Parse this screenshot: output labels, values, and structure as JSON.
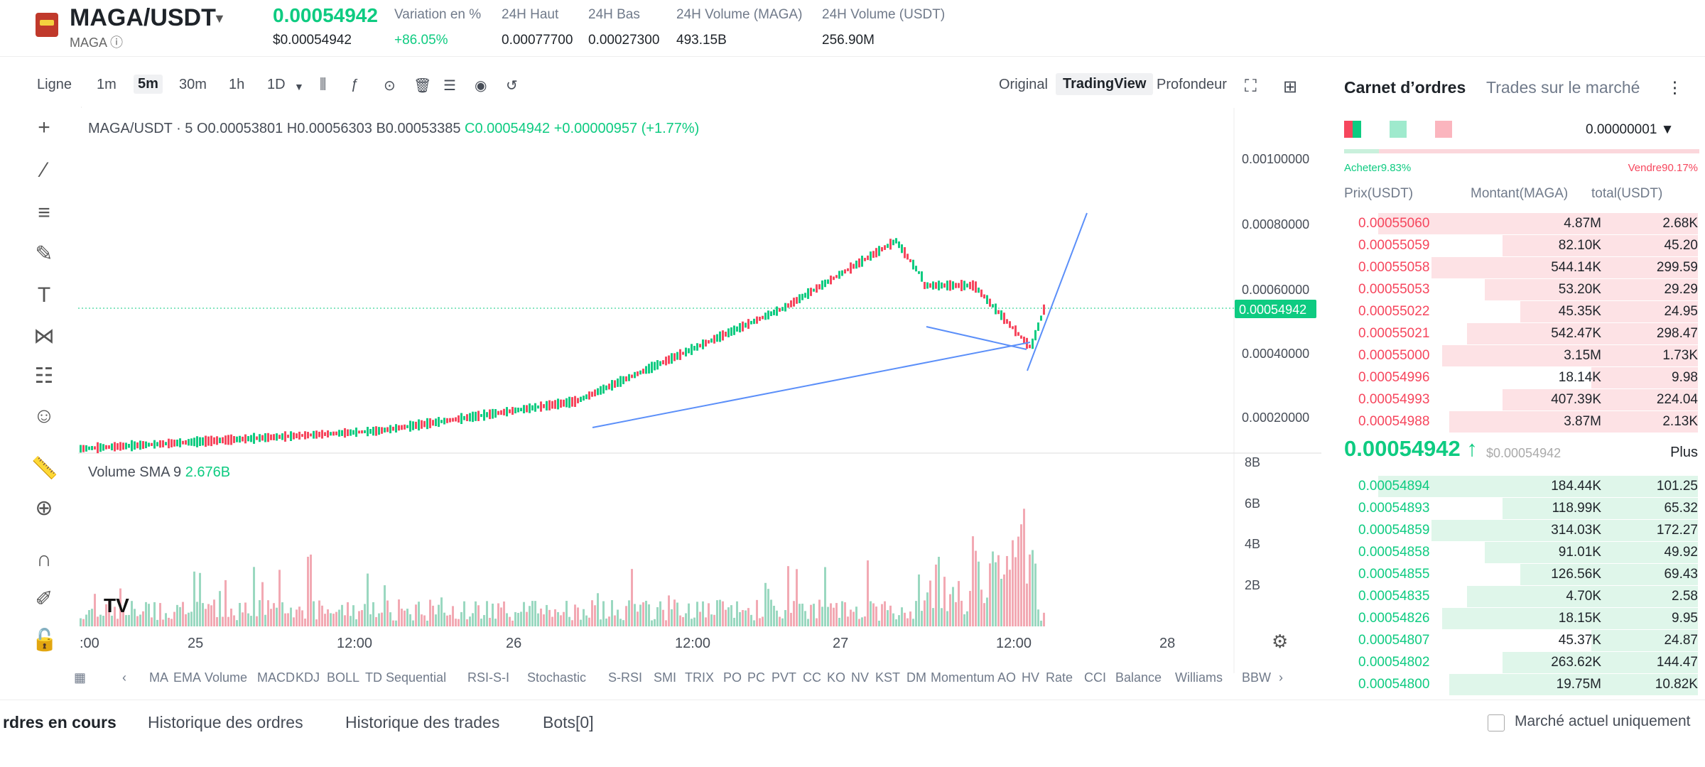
{
  "header": {
    "pair": "MAGA/USDT",
    "base": "MAGA",
    "price": "0.00054942",
    "price_usd": "$0.00054942",
    "stats": [
      {
        "label": "Variation en %",
        "value": "+86.05%"
      },
      {
        "label": "24H Haut",
        "value": "0.00077700"
      },
      {
        "label": "24H Bas",
        "value": "0.00027300"
      },
      {
        "label": "24H Volume (MAGA)",
        "value": "493.15B"
      },
      {
        "label": "24H Volume (USDT)",
        "value": "256.90M"
      }
    ]
  },
  "toolbar": {
    "chart_type": "Ligne",
    "intervals": [
      "1m",
      "5m",
      "30m",
      "1h",
      "1D"
    ],
    "active_interval": "5m",
    "views": [
      "Original",
      "TradingView",
      "Profondeur"
    ],
    "active_view": "TradingView"
  },
  "chart": {
    "legend_pair": "MAGA/USDT · 5",
    "legend_o": "O0.00053801",
    "legend_h": "H0.00056303",
    "legend_b": "B0.00053385",
    "legend_c": "C0.00054942",
    "legend_chg": "+0.00000957 (+1.77%)",
    "price_axis": [
      "0.00100000",
      "0.00080000",
      "0.00060000",
      "0.00040000",
      "0.00020000"
    ],
    "current_price": "0.00054942",
    "volume_label": "Volume SMA 9",
    "volume_value": "2.676B",
    "vol_axis": [
      "8B",
      "6B",
      "4B",
      "2B"
    ],
    "time_axis": [
      ":00",
      "25",
      "12:00",
      "26",
      "12:00",
      "27",
      "12:00",
      "28"
    ]
  },
  "indicators": [
    "MA",
    "EMA",
    "Volume",
    "MACD",
    "KDJ",
    "BOLL",
    "TD Sequential",
    "RSI-S-I",
    "Stochastic",
    "S-RSI",
    "SMI",
    "TRIX",
    "PO",
    "PC",
    "PVT",
    "CC",
    "KO",
    "NV",
    "KST",
    "DM",
    "Momentum",
    "AO",
    "HV",
    "Rate",
    "CCI",
    "Balance",
    "Williams",
    "BBW"
  ],
  "bottom_tabs": [
    "rdres en cours",
    "Historique des ordres",
    "Historique des trades",
    "Bots[0]"
  ],
  "current_market_label": "Marché actuel uniquement",
  "orderbook": {
    "tab1": "Carnet d’ordres",
    "tab2": "Trades sur le marché",
    "precision": "0.00000001",
    "buy_label": "Acheter9.83%",
    "sell_label": "Vendre90.17%",
    "col_price": "Prix(USDT)",
    "col_amount": "Montant(MAGA)",
    "col_total": "total(USDT)",
    "asks": [
      [
        "0.00055060",
        "4.87M",
        "2.68K"
      ],
      [
        "0.00055059",
        "82.10K",
        "45.20"
      ],
      [
        "0.00055058",
        "544.14K",
        "299.59"
      ],
      [
        "0.00055053",
        "53.20K",
        "29.29"
      ],
      [
        "0.00055022",
        "45.35K",
        "24.95"
      ],
      [
        "0.00055021",
        "542.47K",
        "298.47"
      ],
      [
        "0.00055000",
        "3.15M",
        "1.73K"
      ],
      [
        "0.00054996",
        "18.14K",
        "9.98"
      ],
      [
        "0.00054993",
        "407.39K",
        "224.04"
      ],
      [
        "0.00054988",
        "3.87M",
        "2.13K"
      ]
    ],
    "mid_price": "0.00054942",
    "mid_usd": "$0.00054942",
    "more": "Plus",
    "bids": [
      [
        "0.00054894",
        "184.44K",
        "101.25"
      ],
      [
        "0.00054893",
        "118.99K",
        "65.32"
      ],
      [
        "0.00054859",
        "314.03K",
        "172.27"
      ],
      [
        "0.00054858",
        "91.01K",
        "49.92"
      ],
      [
        "0.00054855",
        "126.56K",
        "69.43"
      ],
      [
        "0.00054835",
        "4.70K",
        "2.58"
      ],
      [
        "0.00054826",
        "18.15K",
        "9.95"
      ],
      [
        "0.00054807",
        "45.37K",
        "24.87"
      ],
      [
        "0.00054802",
        "263.62K",
        "144.47"
      ],
      [
        "0.00054800",
        "19.75M",
        "10.82K"
      ]
    ]
  }
}
